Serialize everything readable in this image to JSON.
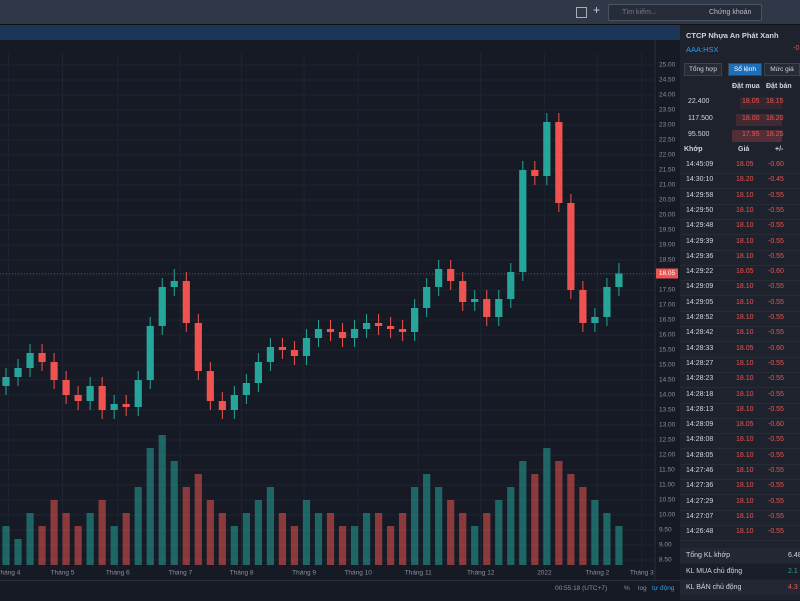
{
  "topbar": {
    "search": "Tìm kiếm...",
    "market": "Chứng khoán"
  },
  "chart_data": {
    "type": "candlestick",
    "current_price": {
      "value": 18.05,
      "label": "18.05"
    },
    "open": [
      14.3,
      14.6,
      14.9,
      15.4,
      15.1,
      14.5,
      14.0,
      13.8,
      14.3,
      13.5,
      13.7,
      13.6,
      14.5,
      16.3,
      17.6,
      17.8,
      16.4,
      14.8,
      13.8,
      13.5,
      14.0,
      14.4,
      15.1,
      15.6,
      15.5,
      15.3,
      15.9,
      16.2,
      16.1,
      15.9,
      16.2,
      16.4,
      16.3,
      16.2,
      16.1,
      16.9,
      17.6,
      18.2,
      17.8,
      17.1,
      17.2,
      16.6,
      17.2,
      18.1,
      21.5,
      21.3,
      23.1,
      20.4,
      17.5,
      16.4,
      16.6,
      17.6
    ],
    "high": [
      14.9,
      15.2,
      15.7,
      15.7,
      15.4,
      14.8,
      14.3,
      14.6,
      14.6,
      14.0,
      14.0,
      14.8,
      16.6,
      17.9,
      18.2,
      18.1,
      16.7,
      15.1,
      14.1,
      14.3,
      14.7,
      15.4,
      15.9,
      15.9,
      15.8,
      16.2,
      16.5,
      16.5,
      16.4,
      16.5,
      16.7,
      16.7,
      16.6,
      16.5,
      17.2,
      17.9,
      18.5,
      18.5,
      18.1,
      17.5,
      17.5,
      17.5,
      18.4,
      21.8,
      21.8,
      23.4,
      23.4,
      20.7,
      17.8,
      16.9,
      17.9,
      18.4
    ],
    "low": [
      14.0,
      14.3,
      14.6,
      14.8,
      14.2,
      13.7,
      13.5,
      13.5,
      13.2,
      13.2,
      13.3,
      13.3,
      14.2,
      16.0,
      17.3,
      16.1,
      14.5,
      13.5,
      13.2,
      13.2,
      13.7,
      14.1,
      14.8,
      15.2,
      15.0,
      15.0,
      15.6,
      15.8,
      15.6,
      15.6,
      15.9,
      16.0,
      15.9,
      15.8,
      15.8,
      16.6,
      17.3,
      17.5,
      16.8,
      16.8,
      16.3,
      16.3,
      16.9,
      17.8,
      21.0,
      21.0,
      20.1,
      17.2,
      16.1,
      16.1,
      16.3,
      17.3
    ],
    "close": [
      14.6,
      14.9,
      15.4,
      15.1,
      14.5,
      14.0,
      13.8,
      14.3,
      13.5,
      13.7,
      13.6,
      14.5,
      16.3,
      17.6,
      17.8,
      16.4,
      14.8,
      13.8,
      13.5,
      14.0,
      14.4,
      15.1,
      15.6,
      15.5,
      15.3,
      15.9,
      16.2,
      16.1,
      15.9,
      16.2,
      16.4,
      16.3,
      16.2,
      16.1,
      16.9,
      17.6,
      18.2,
      17.8,
      17.1,
      17.2,
      16.6,
      17.2,
      18.1,
      21.5,
      21.3,
      23.1,
      20.4,
      17.5,
      16.4,
      16.6,
      17.6,
      18.05
    ],
    "volume": [
      3,
      2,
      4,
      3,
      5,
      4,
      3,
      4,
      5,
      3,
      4,
      6,
      9,
      10,
      8,
      6,
      7,
      5,
      4,
      3,
      4,
      5,
      6,
      4,
      3,
      5,
      4,
      4,
      3,
      3,
      4,
      4,
      3,
      4,
      6,
      7,
      6,
      5,
      4,
      3,
      4,
      5,
      6,
      8,
      7,
      9,
      8,
      7,
      6,
      5,
      4,
      3
    ],
    "up_color": "#26a69a",
    "down_color": "#ef5350",
    "xlim": [
      -0.5,
      54
    ],
    "xticks": [
      {
        "value": 0.2,
        "label": "Tháng 4"
      },
      {
        "value": 4.7,
        "label": "Tháng 5"
      },
      {
        "value": 9.3,
        "label": "Tháng 6"
      },
      {
        "value": 14.5,
        "label": "Tháng 7"
      },
      {
        "value": 19.6,
        "label": "Tháng 8"
      },
      {
        "value": 24.8,
        "label": "Tháng 9"
      },
      {
        "value": 29.3,
        "label": "Tháng 10"
      },
      {
        "value": 34.3,
        "label": "Tháng 11"
      },
      {
        "value": 39.5,
        "label": "Tháng 12"
      },
      {
        "value": 44.8,
        "label": "2022"
      },
      {
        "value": 49.2,
        "label": "Tháng 2"
      },
      {
        "value": 52.9,
        "label": "Tháng 3"
      }
    ],
    "ylim": [
      8.2,
      25.4
    ],
    "yticks": [
      {
        "value": 8.5,
        "label": "8.50"
      },
      {
        "value": 9,
        "label": "9.00"
      },
      {
        "value": 9.5,
        "label": "9.50"
      },
      {
        "value": 10,
        "label": "10.00"
      },
      {
        "value": 10.5,
        "label": "10.50"
      },
      {
        "value": 11,
        "label": "11.00"
      },
      {
        "value": 11.5,
        "label": "11.50"
      },
      {
        "value": 12,
        "label": "12.00"
      },
      {
        "value": 12.5,
        "label": "12.50"
      },
      {
        "value": 13,
        "label": "13.00"
      },
      {
        "value": 13.5,
        "label": "13.50"
      },
      {
        "value": 14,
        "label": "14.00"
      },
      {
        "value": 14.5,
        "label": "14.50"
      },
      {
        "value": 15,
        "label": "15.00"
      },
      {
        "value": 15.5,
        "label": "15.50"
      },
      {
        "value": 16,
        "label": "16.00"
      },
      {
        "value": 16.5,
        "label": "16.50"
      },
      {
        "value": 17,
        "label": "17.00"
      },
      {
        "value": 17.5,
        "label": "17.50"
      },
      {
        "value": 18,
        "label": "18.00"
      },
      {
        "value": 18.5,
        "label": "18.50"
      },
      {
        "value": 19,
        "label": "19.00"
      },
      {
        "value": 19.5,
        "label": "19.50"
      },
      {
        "value": 20,
        "label": "20.00"
      },
      {
        "value": 20.5,
        "label": "20.50"
      },
      {
        "value": 21,
        "label": "21.00"
      },
      {
        "value": 21.5,
        "label": "21.50"
      },
      {
        "value": 22,
        "label": "22.00"
      },
      {
        "value": 22.5,
        "label": "22.50"
      },
      {
        "value": 23,
        "label": "23.00"
      },
      {
        "value": 23.5,
        "label": "23.50"
      },
      {
        "value": 24,
        "label": "24.00"
      },
      {
        "value": 24.5,
        "label": "24.50"
      },
      {
        "value": 25,
        "label": "25.00"
      }
    ],
    "grid": true
  },
  "bottombar": {
    "time": "00:55:18 (UTC+7)",
    "percent": "%",
    "log": "log",
    "auto": "tự động"
  },
  "panel": {
    "title": "CTCP Nhựa An Phát Xanh",
    "ticker": "AAA:HSX",
    "change": "-0",
    "tabs": [
      "Tổng hợp",
      "Sổ lệnh",
      "Mức giá"
    ],
    "book_header": [
      "Đặt mua",
      "Đặt bán"
    ],
    "book": [
      [
        "22.400",
        "18.05",
        "18.15"
      ],
      [
        "117.500",
        "18.00",
        "18.20"
      ],
      [
        "95.500",
        "17.95",
        "18.25"
      ]
    ],
    "trades_header": [
      "Khớp",
      "Giá",
      "+/-"
    ],
    "trades": [
      [
        "14:45:09",
        "18.05",
        "-0.60"
      ],
      [
        "14:30:10",
        "18.20",
        "-0.45"
      ],
      [
        "14:29:58",
        "18.10",
        "-0.55"
      ],
      [
        "14:29:50",
        "18.10",
        "-0.55"
      ],
      [
        "14:29:48",
        "18.10",
        "-0.55"
      ],
      [
        "14:29:39",
        "18.10",
        "-0.55"
      ],
      [
        "14:29:36",
        "18.10",
        "-0.55"
      ],
      [
        "14:29:22",
        "18.05",
        "-0.60"
      ],
      [
        "14:29:09",
        "18.10",
        "-0.55"
      ],
      [
        "14:29:05",
        "18.10",
        "-0.55"
      ],
      [
        "14:28:52",
        "18.10",
        "-0.55"
      ],
      [
        "14:28:42",
        "18.10",
        "-0.55"
      ],
      [
        "14:28:33",
        "18.05",
        "-0.60"
      ],
      [
        "14:28:27",
        "18.10",
        "-0.55"
      ],
      [
        "14:28:23",
        "18.10",
        "-0.55"
      ],
      [
        "14:28:18",
        "18.10",
        "-0.55"
      ],
      [
        "14:28:13",
        "18.10",
        "-0.55"
      ],
      [
        "14:28:09",
        "18.05",
        "-0.60"
      ],
      [
        "14:28:08",
        "18.10",
        "-0.55"
      ],
      [
        "14:28:05",
        "18.10",
        "-0.55"
      ],
      [
        "14:27:46",
        "18.10",
        "-0.55"
      ],
      [
        "14:27:36",
        "18.10",
        "-0.55"
      ],
      [
        "14:27:29",
        "18.10",
        "-0.55"
      ],
      [
        "14:27:07",
        "18.10",
        "-0.55"
      ],
      [
        "14:26:48",
        "18.10",
        "-0.55"
      ]
    ],
    "summary": [
      [
        "Tổng KL khớp",
        "6.48"
      ],
      [
        "KL MUA chủ động",
        "2.1"
      ],
      [
        "KL BÁN chủ động",
        "4.3"
      ]
    ]
  }
}
